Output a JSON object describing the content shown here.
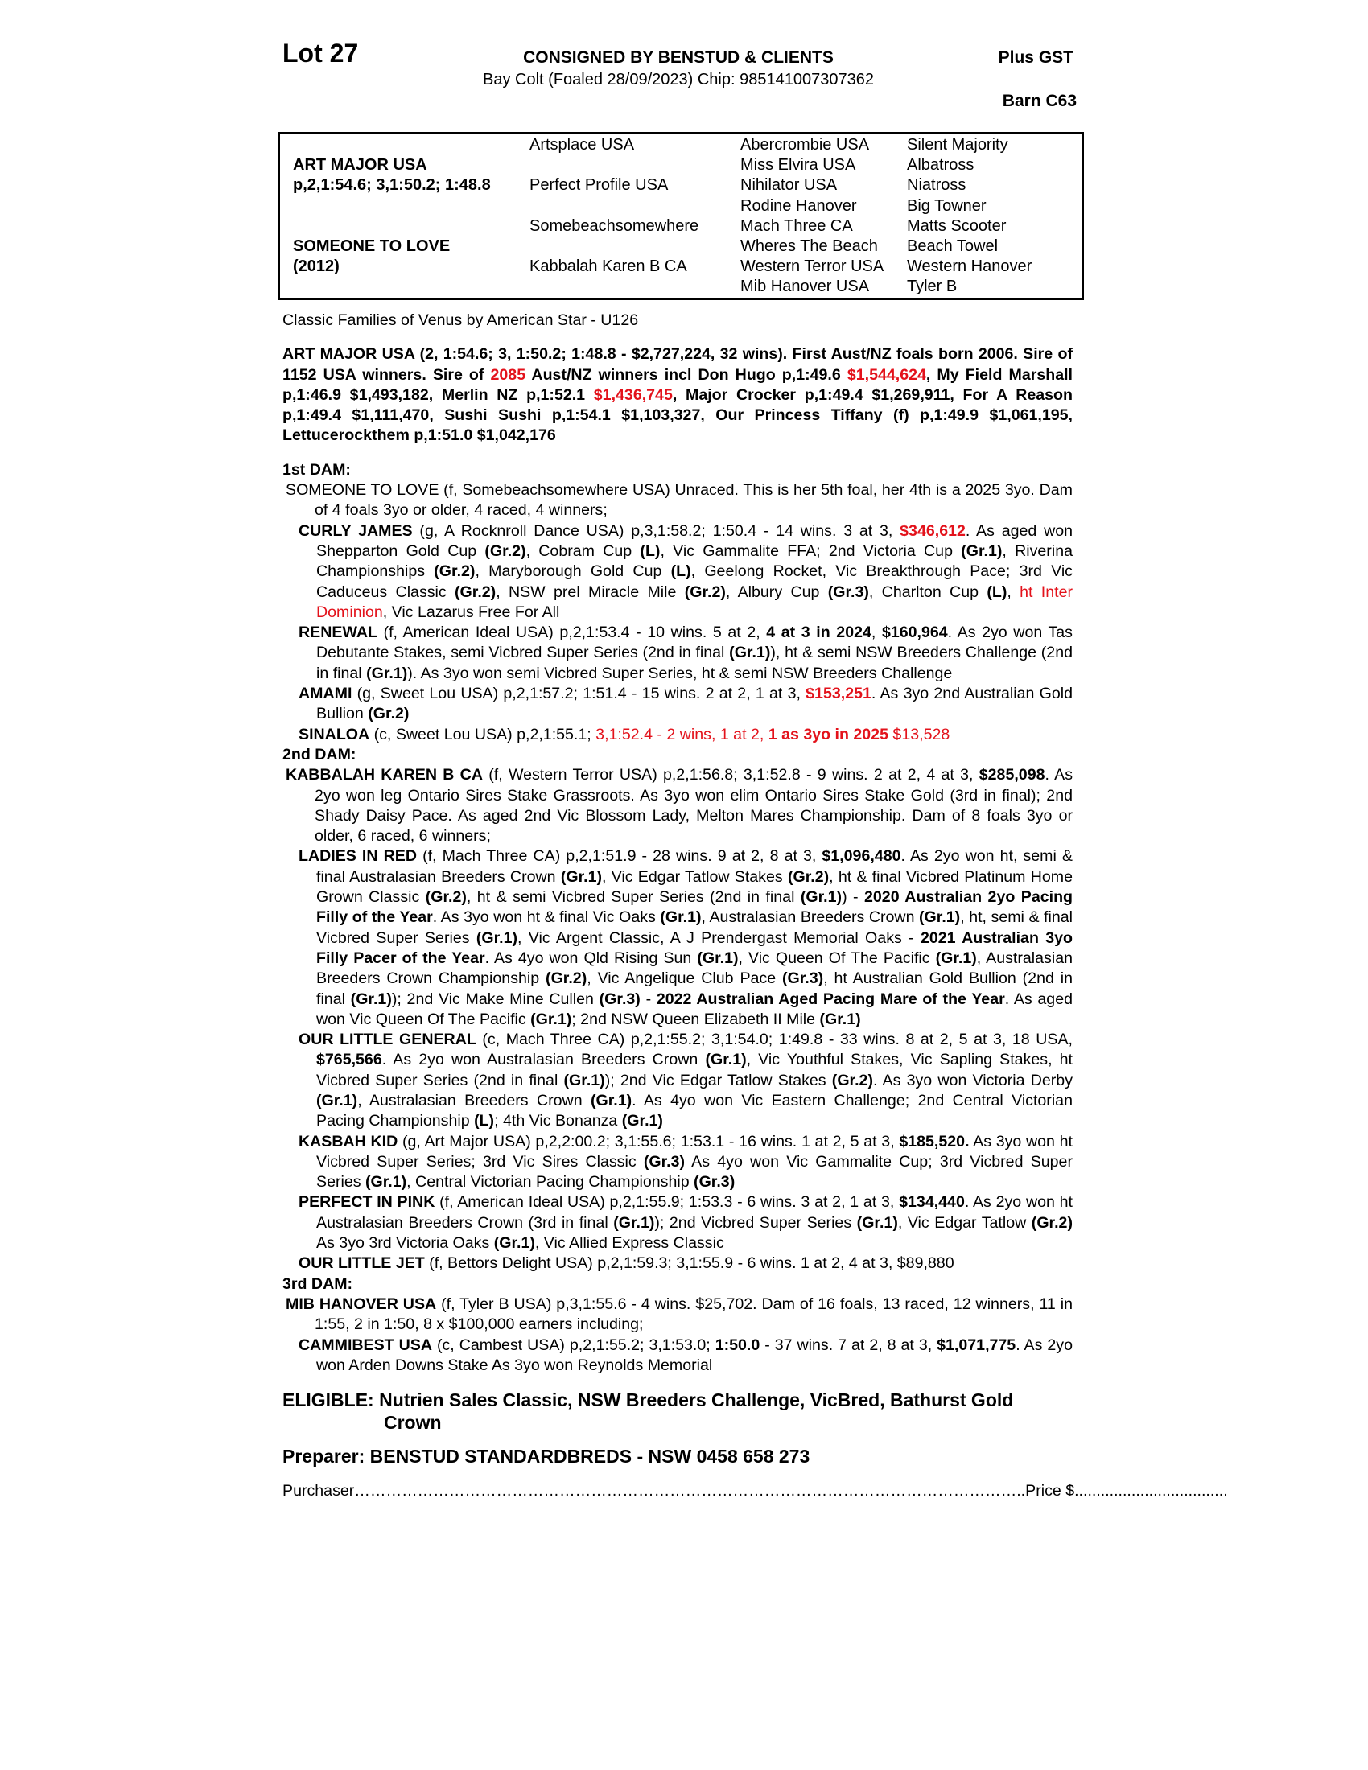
{
  "header": {
    "lot": "Lot 27",
    "consigned": "CONSIGNED BY BENSTUD & CLIENTS",
    "description": "Bay Colt (Foaled 28/09/2023) Chip: 985141007307362",
    "gst": "Plus GST",
    "barn": "Barn C63"
  },
  "pedigree": {
    "sire": "ART MAJOR USA",
    "sire_record": "p,2,1:54.6; 3,1:50.2; 1:48.8",
    "dam": "SOMEONE TO LOVE",
    "dam_year": "(2012)",
    "gen2": [
      "Artsplace USA",
      "Perfect Profile USA",
      "Somebeachsomewhere",
      "Kabbalah Karen B CA"
    ],
    "gen3": [
      "Abercrombie USA",
      "Miss Elvira USA",
      "Nihilator USA",
      "Rodine Hanover",
      "Mach Three CA",
      "Wheres The Beach",
      "Western Terror USA",
      "Mib Hanover USA"
    ],
    "gen4": [
      "Silent Majority",
      "Albatross",
      "Niatross",
      "Big Towner",
      "Matts Scooter",
      "Beach Towel",
      "Western Hanover",
      "Tyler B"
    ]
  },
  "family": "Classic Families of Venus by American Star - U126",
  "sire_para": [
    {
      "t": "ART MAJOR USA (2, 1:54.6; 3, 1:50.2; 1:48.8 - $2,727,224, 32 wins). First Aust/NZ foals born 2006. Sire of 1152 USA winners. Sire of "
    },
    {
      "t": "2085",
      "r": 1
    },
    {
      "t": " Aust/NZ winners incl Don Hugo p,1:49.6 "
    },
    {
      "t": "$1,544,624",
      "r": 1
    },
    {
      "t": ", My Field Marshall p,1:46.9 $1,493,182, Merlin NZ p,1:52.1 "
    },
    {
      "t": "$1,436,745",
      "r": 1
    },
    {
      "t": ", Major Crocker p,1:49.4 $1,269,911, For A Reason p,1:49.4 $1,111,470, Sushi Sushi p,1:54.1 $1,103,327, Our Princess Tiffany (f) p,1:49.9 $1,061,195, Lettucerockthem p,1:51.0 $1,042,176"
    }
  ],
  "sections": [
    {
      "heading": "1st DAM:",
      "dam": [
        {
          "t": "SOMEONE TO LOVE (f, Somebeachsomewhere USA) Unraced. This is her 5th foal, her 4th is a 2025 3yo. Dam of 4 foals 3yo or older, 4 raced, 4 winners;"
        }
      ],
      "entries": [
        [
          {
            "t": "CURLY JAMES",
            "b": 1
          },
          {
            "t": " (g, A Rocknroll Dance USA) p,3,1:58.2; 1:50.4 - 14 wins. 3 at 3, "
          },
          {
            "t": "$346,612",
            "b": 1,
            "r": 1
          },
          {
            "t": ". As aged won Shepparton Gold Cup "
          },
          {
            "t": "(Gr.2)",
            "b": 1
          },
          {
            "t": ", Cobram Cup "
          },
          {
            "t": "(L)",
            "b": 1
          },
          {
            "t": ", Vic Gammalite FFA; 2nd Victoria Cup "
          },
          {
            "t": "(Gr.1)",
            "b": 1
          },
          {
            "t": ", Riverina Championships "
          },
          {
            "t": "(Gr.2)",
            "b": 1
          },
          {
            "t": ", Maryborough Gold Cup "
          },
          {
            "t": "(L)",
            "b": 1
          },
          {
            "t": ", Geelong Rocket, Vic Breakthrough Pace; 3rd Vic Caduceus Classic "
          },
          {
            "t": "(Gr.2)",
            "b": 1
          },
          {
            "t": ", NSW prel Miracle Mile "
          },
          {
            "t": "(Gr.2)",
            "b": 1
          },
          {
            "t": ", Albury Cup "
          },
          {
            "t": "(Gr.3)",
            "b": 1
          },
          {
            "t": ", Charlton Cup "
          },
          {
            "t": "(L)",
            "b": 1
          },
          {
            "t": ", "
          },
          {
            "t": "ht Inter Dominion",
            "r": 1
          },
          {
            "t": ", Vic Lazarus Free For All"
          }
        ],
        [
          {
            "t": "RENEWAL",
            "b": 1
          },
          {
            "t": " (f, American Ideal USA) p,2,1:53.4 - 10 wins. 5 at 2, "
          },
          {
            "t": "4 at 3 in 2024",
            "b": 1
          },
          {
            "t": ", "
          },
          {
            "t": "$160,964",
            "b": 1
          },
          {
            "t": ". As 2yo won Tas Debutante Stakes, semi Vicbred Super Series (2nd in final "
          },
          {
            "t": "(Gr.1)",
            "b": 1
          },
          {
            "t": "), ht & semi NSW Breeders Challenge (2nd in final "
          },
          {
            "t": "(Gr.1)",
            "b": 1
          },
          {
            "t": "). As 3yo won semi Vicbred Super Series, ht & semi NSW Breeders Challenge"
          }
        ],
        [
          {
            "t": "AMAMI",
            "b": 1
          },
          {
            "t": " (g, Sweet Lou USA) p,2,1:57.2; 1:51.4 - 15 wins. 2 at 2, 1 at 3, "
          },
          {
            "t": "$153,251",
            "b": 1,
            "r": 1
          },
          {
            "t": ". As 3yo 2nd Australian Gold Bullion "
          },
          {
            "t": "(Gr.2)",
            "b": 1
          }
        ],
        [
          {
            "t": "SINALOA",
            "b": 1
          },
          {
            "t": " (c, Sweet Lou USA) p,2,1:55.1; "
          },
          {
            "t": "3,1:52.4 - 2 wins, 1 at 2, ",
            "r": 1
          },
          {
            "t": "1 as 3yo in 2025",
            "b": 1,
            "r": 1
          },
          {
            "t": " $13,528",
            "r": 1
          }
        ]
      ]
    },
    {
      "heading": "2nd DAM:",
      "dam": [
        {
          "t": "KABBALAH KAREN B CA",
          "b": 1
        },
        {
          "t": " (f, Western Terror USA) p,2,1:56.8; 3,1:52.8 - 9 wins. 2 at 2, 4 at 3, "
        },
        {
          "t": "$285,098",
          "b": 1
        },
        {
          "t": ". As 2yo won leg Ontario Sires Stake Grassroots. As 3yo won elim Ontario Sires Stake Gold (3rd in final); 2nd Shady Daisy Pace. As aged 2nd Vic Blossom Lady, Melton Mares Championship. Dam of 8 foals 3yo or older, 6 raced, 6 winners;"
        }
      ],
      "entries": [
        [
          {
            "t": "LADIES IN RED",
            "b": 1
          },
          {
            "t": " (f, Mach Three CA) p,2,1:51.9 - 28 wins. 9 at 2, 8 at 3, "
          },
          {
            "t": "$1,096,480",
            "b": 1
          },
          {
            "t": ". As 2yo won ht, semi & final Australasian Breeders Crown "
          },
          {
            "t": "(Gr.1)",
            "b": 1
          },
          {
            "t": ", Vic Edgar Tatlow Stakes "
          },
          {
            "t": "(Gr.2)",
            "b": 1
          },
          {
            "t": ", ht & final Vicbred Platinum Home Grown Classic "
          },
          {
            "t": "(Gr.2)",
            "b": 1
          },
          {
            "t": ", ht & semi Vicbred Super Series (2nd in final "
          },
          {
            "t": "(Gr.1)",
            "b": 1
          },
          {
            "t": ") - "
          },
          {
            "t": "2020 Australian 2yo Pacing Filly of the Year",
            "b": 1
          },
          {
            "t": ". As 3yo won ht & final Vic Oaks "
          },
          {
            "t": "(Gr.1)",
            "b": 1
          },
          {
            "t": ", Australasian Breeders Crown "
          },
          {
            "t": "(Gr.1)",
            "b": 1
          },
          {
            "t": ", ht, semi & final Vicbred Super Series "
          },
          {
            "t": "(Gr.1)",
            "b": 1
          },
          {
            "t": ", Vic Argent Classic, A J Prendergast Memorial Oaks - "
          },
          {
            "t": "2021 Australian 3yo Filly Pacer of the Year",
            "b": 1
          },
          {
            "t": ". As 4yo won Qld Rising Sun "
          },
          {
            "t": "(Gr.1)",
            "b": 1
          },
          {
            "t": ", Vic Queen Of The Pacific "
          },
          {
            "t": "(Gr.1)",
            "b": 1
          },
          {
            "t": ", Australasian Breeders Crown Championship "
          },
          {
            "t": "(Gr.2)",
            "b": 1
          },
          {
            "t": ", Vic Angelique Club Pace "
          },
          {
            "t": "(Gr.3)",
            "b": 1
          },
          {
            "t": ", ht  Australian Gold Bullion (2nd in final "
          },
          {
            "t": "(Gr.1)",
            "b": 1
          },
          {
            "t": "); 2nd Vic Make Mine Cullen "
          },
          {
            "t": "(Gr.3)",
            "b": 1
          },
          {
            "t": " - "
          },
          {
            "t": "2022 Australian Aged Pacing Mare of the Year",
            "b": 1
          },
          {
            "t": ". As aged won Vic Queen Of The Pacific "
          },
          {
            "t": "(Gr.1)",
            "b": 1
          },
          {
            "t": "; 2nd NSW Queen Elizabeth II Mile "
          },
          {
            "t": "(Gr.1)",
            "b": 1
          }
        ],
        [
          {
            "t": "OUR LITTLE GENERAL",
            "b": 1
          },
          {
            "t": " (c, Mach Three CA) p,2,1:55.2; 3,1:54.0; 1:49.8 - 33 wins. 8 at 2, 5 at 3, 18 USA, "
          },
          {
            "t": "$765,566",
            "b": 1
          },
          {
            "t": ". As 2yo won Australasian Breeders Crown "
          },
          {
            "t": "(Gr.1)",
            "b": 1
          },
          {
            "t": ", Vic Youthful Stakes, Vic Sapling Stakes, ht Vicbred Super Series (2nd in final "
          },
          {
            "t": "(Gr.1)",
            "b": 1
          },
          {
            "t": "); 2nd Vic Edgar Tatlow Stakes "
          },
          {
            "t": "(Gr.2)",
            "b": 1
          },
          {
            "t": ". As 3yo won Victoria Derby "
          },
          {
            "t": "(Gr.1)",
            "b": 1
          },
          {
            "t": ", Australasian Breeders Crown "
          },
          {
            "t": "(Gr.1)",
            "b": 1
          },
          {
            "t": ". As 4yo won Vic Eastern Challenge; 2nd Central Victorian Pacing Championship "
          },
          {
            "t": "(L)",
            "b": 1
          },
          {
            "t": "; 4th Vic Bonanza "
          },
          {
            "t": "(Gr.1)",
            "b": 1
          }
        ],
        [
          {
            "t": "KASBAH KID",
            "b": 1
          },
          {
            "t": " (g, Art Major USA) p,2,2:00.2; 3,1:55.6; 1:53.1 - 16 wins. 1 at 2, 5 at 3, "
          },
          {
            "t": "$185,520.",
            "b": 1
          },
          {
            "t": " As 3yo won ht Vicbred Super Series; 3rd Vic Sires Classic "
          },
          {
            "t": "(Gr.3)",
            "b": 1
          },
          {
            "t": " As 4yo won Vic Gammalite Cup; 3rd Vicbred Super Series "
          },
          {
            "t": "(Gr.1)",
            "b": 1
          },
          {
            "t": ", Central Victorian Pacing Championship "
          },
          {
            "t": "(Gr.3)",
            "b": 1
          }
        ],
        [
          {
            "t": "PERFECT IN PINK",
            "b": 1
          },
          {
            "t": " (f, American Ideal USA) p,2,1:55.9; 1:53.3 - 6 wins. 3 at 2, 1 at 3, "
          },
          {
            "t": "$134,440",
            "b": 1
          },
          {
            "t": ". As 2yo won ht Australasian Breeders Crown (3rd in final "
          },
          {
            "t": "(Gr.1)",
            "b": 1
          },
          {
            "t": "); 2nd Vicbred Super Series "
          },
          {
            "t": "(Gr.1)",
            "b": 1
          },
          {
            "t": ", Vic Edgar Tatlow "
          },
          {
            "t": "(Gr.2)",
            "b": 1
          },
          {
            "t": " As 3yo 3rd Victoria Oaks "
          },
          {
            "t": "(Gr.1)",
            "b": 1
          },
          {
            "t": ", Vic Allied Express Classic"
          }
        ],
        [
          {
            "t": "OUR LITTLE JET",
            "b": 1
          },
          {
            "t": " (f, Bettors Delight USA) p,2,1:59.3; 3,1:55.9 - 6 wins. 1 at 2, 4 at 3, $89,880"
          }
        ]
      ]
    },
    {
      "heading": "3rd DAM:",
      "dam": [
        {
          "t": "MIB HANOVER USA",
          "b": 1
        },
        {
          "t": " (f, Tyler B USA) p,3,1:55.6 - 4 wins. $25,702. Dam of 16 foals, 13 raced, 12 winners, 11 in 1:55, 2 in 1:50, 8 x $100,000 earners including;"
        }
      ],
      "entries": [
        [
          {
            "t": "CAMMIBEST USA",
            "b": 1
          },
          {
            "t": " (c, Cambest USA) p,2,1:55.2; 3,1:53.0; "
          },
          {
            "t": "1:50.0",
            "b": 1
          },
          {
            "t": " - 37 wins. 7 at 2, 8 at 3, "
          },
          {
            "t": "$1,071,775",
            "b": 1
          },
          {
            "t": ". As 2yo won Arden Downs Stake As 3yo won Reynolds Memorial"
          }
        ]
      ]
    }
  ],
  "eligible": "ELIGIBLE: Nutrien Sales Classic, NSW Breeders Challenge, VicBred, Bathurst Gold Crown",
  "preparer": "Preparer: BENSTUD STANDARDBREDS - NSW 0458 658 273",
  "purchaser": "Purchaser………………………………………………………………………………………………………………..Price $...................................",
  "colors": {
    "highlight": "#e3121b",
    "text": "#000000"
  }
}
